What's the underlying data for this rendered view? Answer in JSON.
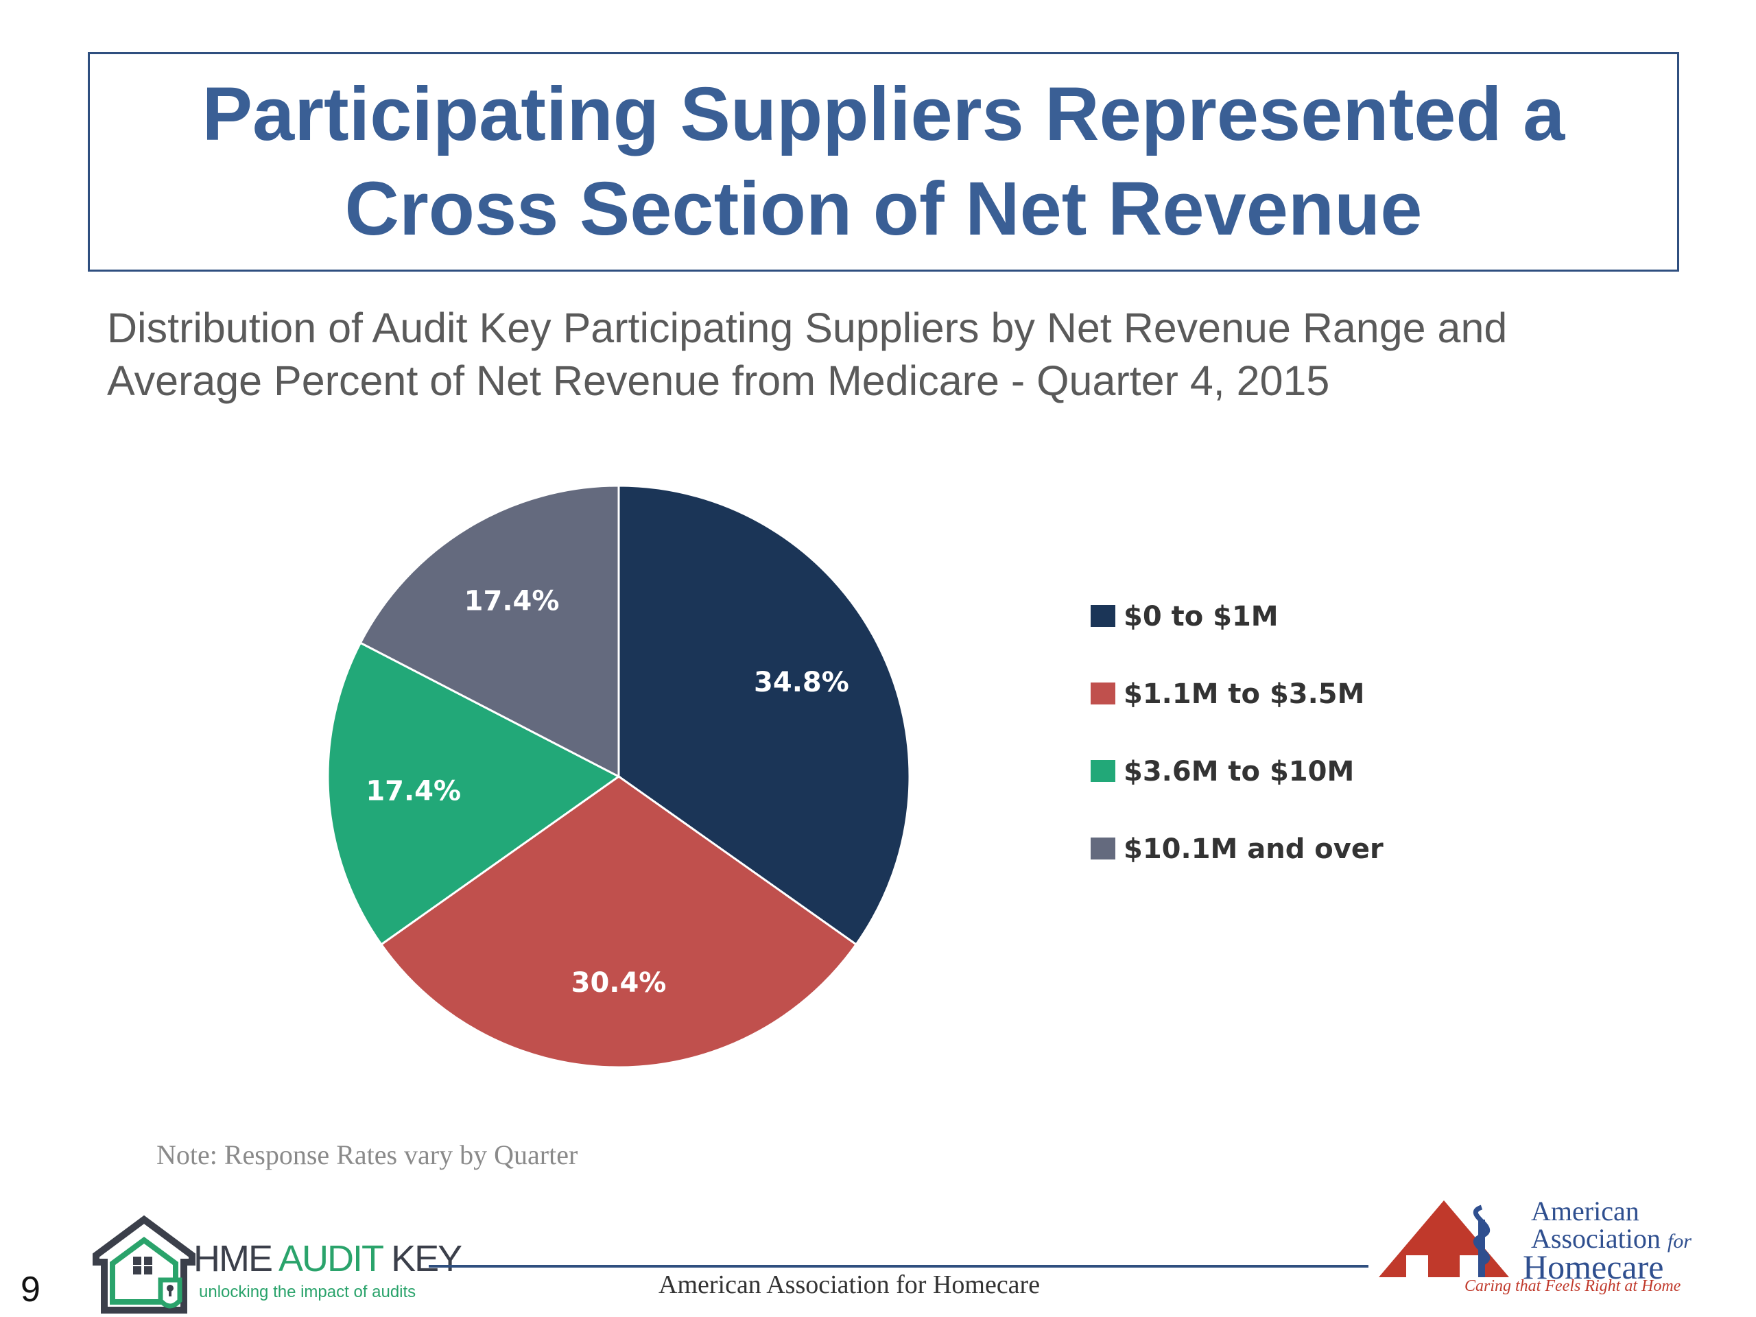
{
  "slide": {
    "title_line1": "Participating Suppliers Represented a",
    "title_line2": "Cross Section of Net Revenue",
    "subtitle_line1": "Distribution of Audit Key Participating Suppliers by Net Revenue Range and",
    "subtitle_line2": "Average Percent of Net Revenue from Medicare - Quarter 4, 2015",
    "note": "Note: Response Rates vary by Quarter",
    "page_number": "9",
    "footer_text": "American Association for Homecare"
  },
  "chart_data": {
    "type": "pie",
    "categories": [
      "$0 to $1M",
      "$1.1M to $3.5M",
      "$3.6M to $10M",
      "$10.1M and over"
    ],
    "values": [
      34.8,
      30.4,
      17.4,
      17.4
    ],
    "data_labels": [
      "34.8%",
      "30.4%",
      "17.4%",
      "17.4%"
    ],
    "colors": [
      "#1b3557",
      "#c0504d",
      "#22a878",
      "#646a7e"
    ],
    "start_angle": "12 o'clock",
    "direction": "clockwise",
    "legend_position": "right"
  },
  "logos": {
    "hme_audit_key": {
      "name_part1": "HME ",
      "name_part2": "AUDIT",
      "name_part3": " KEY",
      "tagline": "unlocking the impact of audits"
    },
    "aah": {
      "line1": "American",
      "line2": "Association",
      "line2_suffix": "for",
      "line3": "Homecare",
      "tagline": "Caring that Feels Right at Home"
    }
  }
}
